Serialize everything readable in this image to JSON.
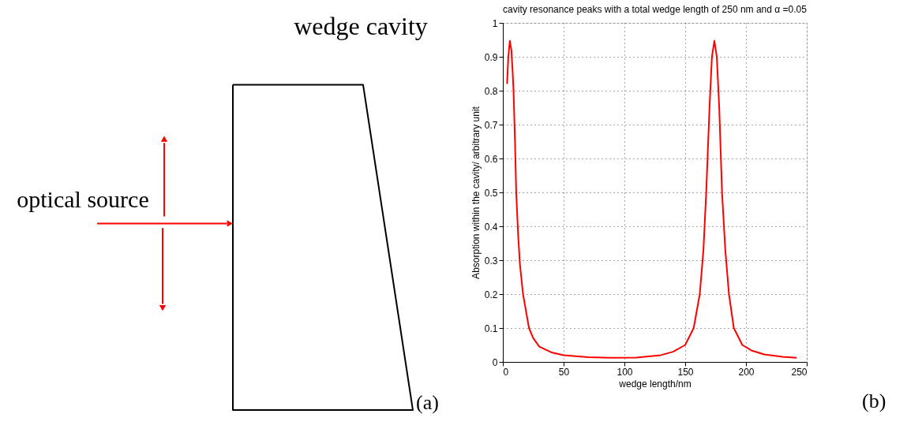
{
  "chart_data": [
    {
      "type": "other",
      "title": "wedge cavity",
      "annotations": [
        "optical source",
        "(a)"
      ]
    },
    {
      "type": "line",
      "title": "cavity resonance peaks with a total wedge length of 250 nm and α =0.05",
      "xlabel": "wedge length/nm",
      "ylabel": "Absorption within the cavity/ arbitrary unit",
      "x": [
        3.5,
        4.5,
        5.75,
        7,
        8,
        8.8,
        10,
        11,
        12.5,
        14,
        16.6,
        21.5,
        25,
        30,
        40,
        50,
        70,
        90,
        110,
        130,
        140,
        150,
        157,
        162,
        165,
        167.3,
        170,
        172,
        174,
        176,
        178,
        180.3,
        183,
        186,
        190,
        197,
        205,
        215,
        230,
        241.6
      ],
      "series": [
        {
          "color": "#ff0000",
          "values": [
            0.82,
            0.9,
            0.947,
            0.92,
            0.86,
            0.8,
            0.65,
            0.5,
            0.38,
            0.29,
            0.2,
            0.1,
            0.07,
            0.045,
            0.028,
            0.02,
            0.014,
            0.012,
            0.013,
            0.02,
            0.03,
            0.05,
            0.1,
            0.2,
            0.33,
            0.5,
            0.75,
            0.9,
            0.947,
            0.9,
            0.75,
            0.5,
            0.33,
            0.2,
            0.1,
            0.05,
            0.033,
            0.022,
            0.015,
            0.012
          ]
        }
      ],
      "xlim": [
        0,
        250
      ],
      "ylim": [
        0,
        1
      ],
      "xticks": [
        0,
        50,
        100,
        150,
        200,
        250
      ],
      "yticks": [
        0,
        0.1,
        0.2,
        0.3,
        0.4,
        0.5,
        0.6,
        0.7,
        0.8,
        0.9,
        1
      ],
      "grid": true,
      "marker": "none",
      "line_style": "solid",
      "annotations": [
        "(b)"
      ]
    }
  ]
}
